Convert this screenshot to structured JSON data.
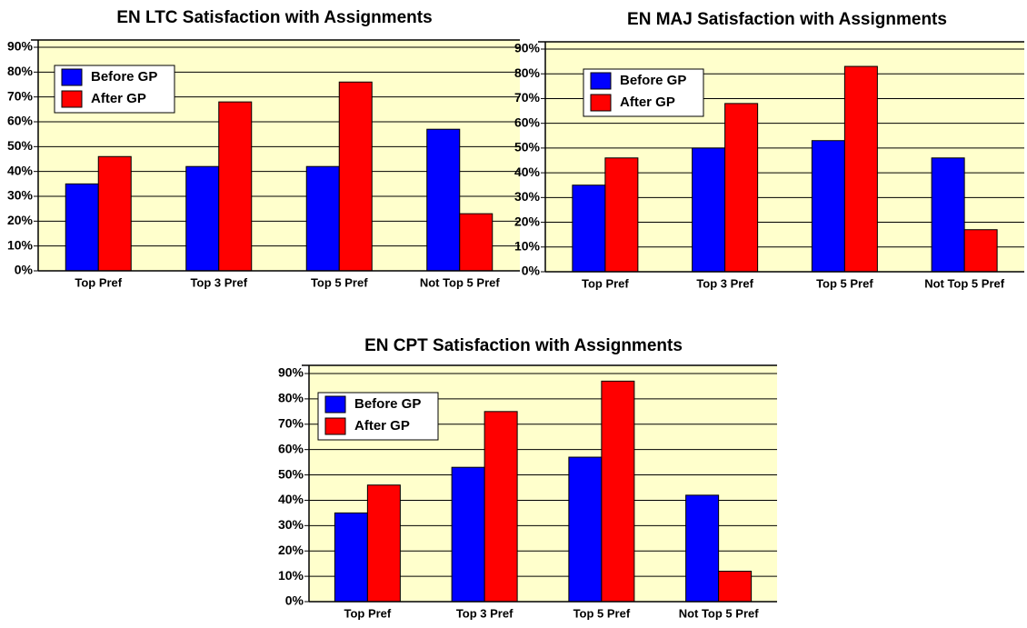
{
  "chart_data": [
    {
      "type": "bar",
      "title": "EN LTC Satisfaction with Assignments",
      "categories": [
        "Top Pref",
        "Top 3 Pref",
        "Top 5 Pref",
        "Not Top 5 Pref"
      ],
      "series": [
        {
          "name": "Before GP",
          "color": "#0000ff",
          "values": [
            35,
            42,
            42,
            57
          ]
        },
        {
          "name": "After GP",
          "color": "#ff0000",
          "values": [
            46,
            68,
            76,
            23
          ]
        }
      ],
      "ylim": [
        0,
        90
      ],
      "yticks": [
        {
          "value": 0,
          "label": "0%"
        },
        {
          "value": 10,
          "label": "10%"
        },
        {
          "value": 20,
          "label": "20%"
        },
        {
          "value": 30,
          "label": "30%"
        },
        {
          "value": 40,
          "label": "40%"
        },
        {
          "value": 50,
          "label": "50%"
        },
        {
          "value": 60,
          "label": "60%"
        },
        {
          "value": 70,
          "label": "70%"
        },
        {
          "value": 80,
          "label": "80%"
        },
        {
          "value": 90,
          "label": "90%"
        }
      ],
      "grid": true,
      "legend": "upper left"
    },
    {
      "type": "bar",
      "title": "EN MAJ Satisfaction with Assignments",
      "categories": [
        "Top Pref",
        "Top 3 Pref",
        "Top 5 Pref",
        "Not Top 5 Pref"
      ],
      "series": [
        {
          "name": "Before GP",
          "color": "#0000ff",
          "values": [
            35,
            50,
            53,
            46
          ]
        },
        {
          "name": "After GP",
          "color": "#ff0000",
          "values": [
            46,
            68,
            83,
            17
          ]
        }
      ],
      "ylim": [
        0,
        90
      ],
      "yticks": [
        {
          "value": 0,
          "label": "0%"
        },
        {
          "value": 10,
          "label": "10%"
        },
        {
          "value": 20,
          "label": "20%"
        },
        {
          "value": 30,
          "label": "30%"
        },
        {
          "value": 40,
          "label": "40%"
        },
        {
          "value": 50,
          "label": "50%"
        },
        {
          "value": 60,
          "label": "60%"
        },
        {
          "value": 70,
          "label": "70%"
        },
        {
          "value": 80,
          "label": "80%"
        },
        {
          "value": 90,
          "label": "90%"
        }
      ],
      "grid": true,
      "legend": "upper left"
    },
    {
      "type": "bar",
      "title": "EN CPT Satisfaction with Assignments",
      "categories": [
        "Top Pref",
        "Top 3 Pref",
        "Top 5 Pref",
        "Not Top 5 Pref"
      ],
      "series": [
        {
          "name": "Before GP",
          "color": "#0000ff",
          "values": [
            35,
            53,
            57,
            42
          ]
        },
        {
          "name": "After GP",
          "color": "#ff0000",
          "values": [
            46,
            75,
            87,
            12
          ]
        }
      ],
      "ylim": [
        0,
        90
      ],
      "yticks": [
        {
          "value": 0,
          "label": "0%"
        },
        {
          "value": 10,
          "label": "10%"
        },
        {
          "value": 20,
          "label": "20%"
        },
        {
          "value": 30,
          "label": "30%"
        },
        {
          "value": 40,
          "label": "40%"
        },
        {
          "value": 50,
          "label": "50%"
        },
        {
          "value": 60,
          "label": "60%"
        },
        {
          "value": 70,
          "label": "70%"
        },
        {
          "value": 80,
          "label": "80%"
        },
        {
          "value": 90,
          "label": "90%"
        }
      ],
      "grid": true,
      "legend": "upper left"
    }
  ]
}
